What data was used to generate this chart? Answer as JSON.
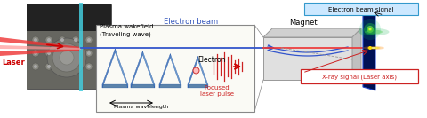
{
  "fig_width": 4.8,
  "fig_height": 1.33,
  "dpi": 100,
  "bg_color": "#ffffff",
  "labels": {
    "laser": "Laser",
    "electron_beam": "Electron beam",
    "magnet": "Magnet",
    "electron_beam_signal": "Electron beam signal",
    "xray_signal": "X-ray signal (Laser axis)",
    "plasma_wakefield": "Plasma wakefield\n(Traveling wave)",
    "electron": "Electron",
    "plasma_wavelength": "Plasma wavelength",
    "focused_laser_pulse": "Focused\nlaser pulse"
  },
  "colors": {
    "laser_beam": "#ee3333",
    "electron_beam_line": "#3355cc",
    "plasma_wave_light": "#6699dd",
    "plasma_wave_dark": "#2255aa",
    "red_pulse": "#cc2222",
    "magnet_face": "#e0e0e0",
    "magnet_top": "#d0d0d0",
    "magnet_right": "#c0c0c0",
    "magnet_edge": "#999999",
    "screen_bg": "#001155",
    "signal_box_bg": "#cce8ff",
    "signal_box_edge": "#3399cc",
    "xray_box_bg": "#ffffff",
    "xray_box_edge": "#cc2222",
    "annotation_blue": "#3355bb",
    "annotation_red": "#cc2222",
    "arrow_red": "#cc0000",
    "photo_bg": "#888880"
  }
}
